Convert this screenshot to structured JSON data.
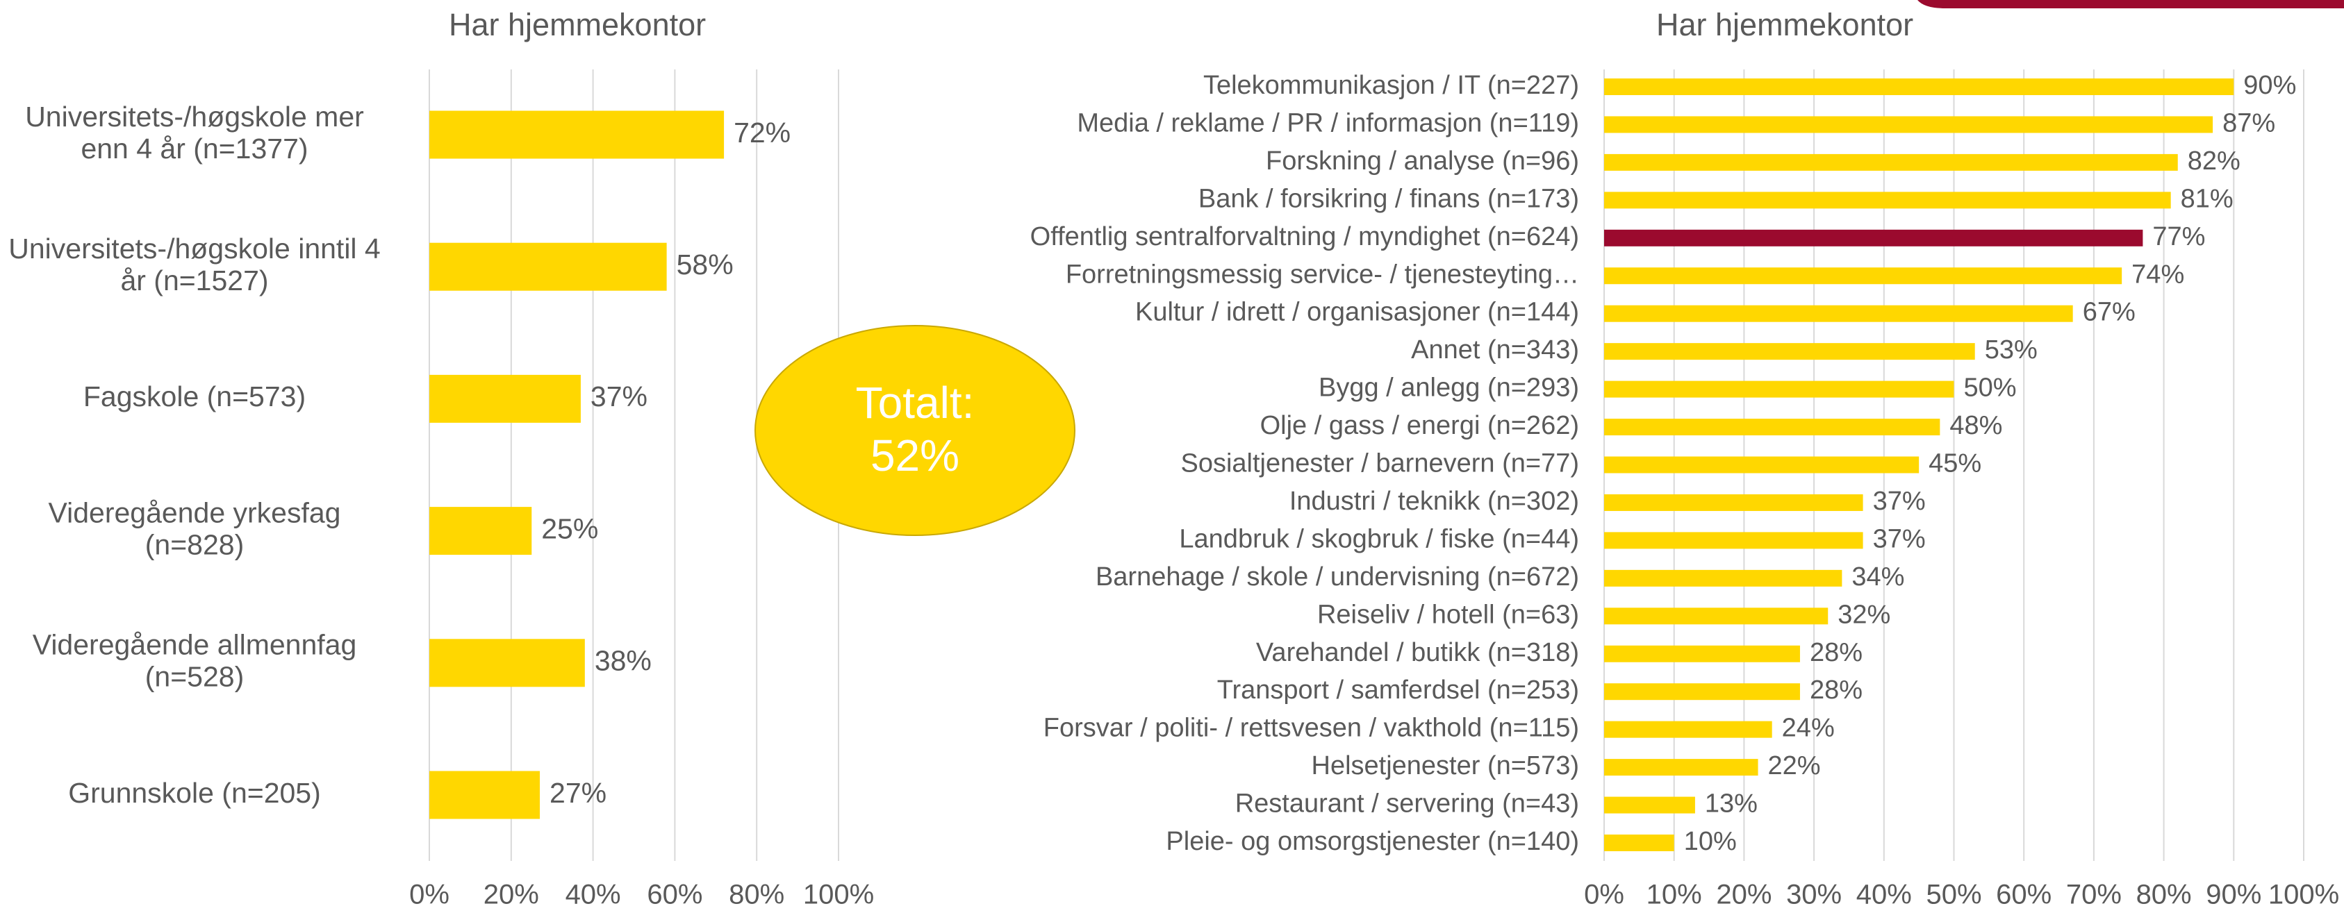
{
  "chart_data": [
    {
      "type": "bar",
      "orientation": "horizontal",
      "title": "Har hjemmekontor",
      "categories": [
        [
          "Universitets-/høgskole mer",
          "enn 4 år (n=1377)"
        ],
        [
          "Universitets-/høgskole inntil 4",
          "år (n=1527)"
        ],
        [
          "Fagskole (n=573)"
        ],
        [
          "Videregående yrkesfag",
          "(n=828)"
        ],
        [
          "Videregående allmennfag",
          "(n=528)"
        ],
        [
          "Grunnskole (n=205)"
        ]
      ],
      "values": [
        72,
        58,
        37,
        25,
        38,
        27
      ],
      "value_labels": [
        "72%",
        "58%",
        "37%",
        "25%",
        "38%",
        "27%"
      ],
      "colors": [
        "#ffd700",
        "#ffd700",
        "#ffd700",
        "#ffd700",
        "#ffd700",
        "#ffd700"
      ],
      "xlim": [
        0,
        100
      ],
      "xticks": [
        {
          "value": 0,
          "label": "0%"
        },
        {
          "value": 20,
          "label": "20%"
        },
        {
          "value": 40,
          "label": "40%"
        },
        {
          "value": 60,
          "label": "60%"
        },
        {
          "value": 80,
          "label": "80%"
        },
        {
          "value": 100,
          "label": "100%"
        }
      ],
      "grid": true
    },
    {
      "type": "bar",
      "orientation": "horizontal",
      "title": "Har hjemmekontor",
      "categories": [
        "Telekommunikasjon / IT (n=227)",
        "Media / reklame / PR / informasjon (n=119)",
        "Forskning / analyse (n=96)",
        "Bank / forsikring / finans (n=173)",
        "Offentlig sentralforvaltning / myndighet (n=624)",
        "Forretningsmessig service- / tjenesteyting…",
        "Kultur / idrett / organisasjoner (n=144)",
        "Annet (n=343)",
        "Bygg / anlegg (n=293)",
        "Olje / gass / energi (n=262)",
        "Sosialtjenester / barnevern (n=77)",
        "Industri / teknikk (n=302)",
        "Landbruk / skogbruk / fiske (n=44)",
        "Barnehage / skole / undervisning (n=672)",
        "Reiseliv / hotell (n=63)",
        "Varehandel / butikk (n=318)",
        "Transport / samferdsel (n=253)",
        "Forsvar / politi- / rettsvesen / vakthold (n=115)",
        "Helsetjenester (n=573)",
        "Restaurant / servering (n=43)",
        "Pleie- og omsorgstjenester (n=140)"
      ],
      "values": [
        90,
        87,
        82,
        81,
        77,
        74,
        67,
        53,
        50,
        48,
        45,
        37,
        37,
        34,
        32,
        28,
        28,
        24,
        22,
        13,
        10
      ],
      "value_labels": [
        "90%",
        "87%",
        "82%",
        "81%",
        "77%",
        "74%",
        "67%",
        "53%",
        "50%",
        "48%",
        "45%",
        "37%",
        "37%",
        "34%",
        "32%",
        "28%",
        "28%",
        "24%",
        "22%",
        "13%",
        "10%"
      ],
      "colors": [
        "#ffd700",
        "#ffd700",
        "#ffd700",
        "#ffd700",
        "#9b0a2e",
        "#ffd700",
        "#ffd700",
        "#ffd700",
        "#ffd700",
        "#ffd700",
        "#ffd700",
        "#ffd700",
        "#ffd700",
        "#ffd700",
        "#ffd700",
        "#ffd700",
        "#ffd700",
        "#ffd700",
        "#ffd700",
        "#ffd700",
        "#ffd700"
      ],
      "xlim": [
        0,
        100
      ],
      "xticks": [
        {
          "value": 0,
          "label": "0%"
        },
        {
          "value": 10,
          "label": "10%"
        },
        {
          "value": 20,
          "label": "20%"
        },
        {
          "value": 30,
          "label": "30%"
        },
        {
          "value": 40,
          "label": "40%"
        },
        {
          "value": 50,
          "label": "50%"
        },
        {
          "value": 60,
          "label": "60%"
        },
        {
          "value": 70,
          "label": "70%"
        },
        {
          "value": 80,
          "label": "80%"
        },
        {
          "value": 90,
          "label": "90%"
        },
        {
          "value": 100,
          "label": "100%"
        }
      ],
      "grid": true
    }
  ],
  "annotation": {
    "lines": [
      "Totalt:",
      "52%"
    ],
    "color": "#ffd700"
  }
}
